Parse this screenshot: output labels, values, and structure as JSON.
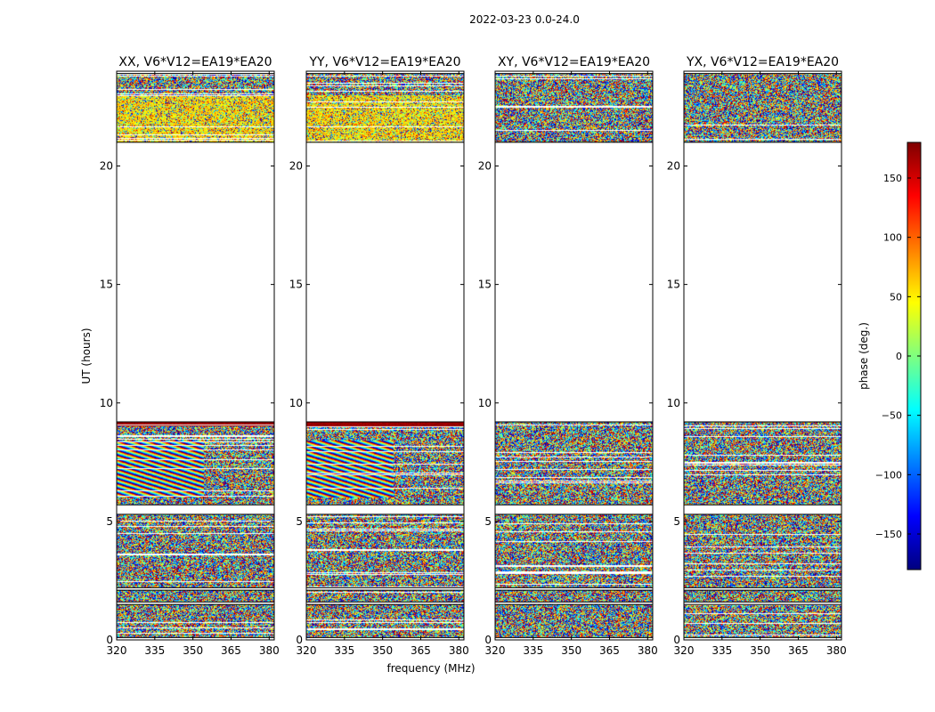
{
  "figure_title": "2022-03-23 0.0-24.0",
  "colors": {
    "axis": "#000000",
    "gap": "#ffffff",
    "colormap": [
      "#00007f",
      "#0000ff",
      "#007fff",
      "#00ffff",
      "#7fff7f",
      "#ffff00",
      "#ff7f00",
      "#ff0000",
      "#7f0000"
    ]
  },
  "chart_data": [
    {
      "type": "heatmap",
      "title": "XX, V6*V12=EA19*EA20",
      "xlabel": "",
      "ylabel": "UT (hours)",
      "xlim": [
        320,
        382
      ],
      "ylim": [
        0,
        24
      ],
      "xticks": [
        320,
        335,
        350,
        365,
        380
      ],
      "yticks": [
        0,
        5,
        10,
        15,
        20
      ],
      "pattern": "fringe"
    },
    {
      "type": "heatmap",
      "title": "YY, V6*V12=EA19*EA20",
      "xlabel": "frequency (MHz)",
      "ylabel": "",
      "xlim": [
        320,
        382
      ],
      "ylim": [
        0,
        24
      ],
      "xticks": [
        320,
        335,
        350,
        365,
        380
      ],
      "yticks": [
        0,
        5,
        10,
        15,
        20
      ],
      "pattern": "fringe"
    },
    {
      "type": "heatmap",
      "title": "XY, V6*V12=EA19*EA20",
      "xlabel": "",
      "ylabel": "",
      "xlim": [
        320,
        382
      ],
      "ylim": [
        0,
        24
      ],
      "xticks": [
        320,
        335,
        350,
        365,
        380
      ],
      "yticks": [
        0,
        5,
        10,
        15,
        20
      ],
      "pattern": "noise"
    },
    {
      "type": "heatmap",
      "title": "YX, V6*V12=EA19*EA20",
      "xlabel": "",
      "ylabel": "",
      "xlim": [
        320,
        382
      ],
      "ylim": [
        0,
        24
      ],
      "xticks": [
        320,
        335,
        350,
        365,
        380
      ],
      "yticks": [
        0,
        5,
        10,
        15,
        20
      ],
      "pattern": "noise"
    }
  ],
  "data_blocks_ut_hours": [
    [
      0.1,
      1.5
    ],
    [
      1.6,
      2.1
    ],
    [
      2.2,
      5.3
    ],
    [
      5.7,
      9.2
    ],
    [
      21.0,
      23.9
    ]
  ],
  "colorbar": {
    "label": "phase (deg.)",
    "range": [
      -180,
      180
    ],
    "ticks": [
      150,
      100,
      50,
      0,
      -50,
      -100,
      -150
    ],
    "tick_labels": [
      "150",
      "100",
      "50",
      "0",
      "−50",
      "−100",
      "−150"
    ]
  }
}
